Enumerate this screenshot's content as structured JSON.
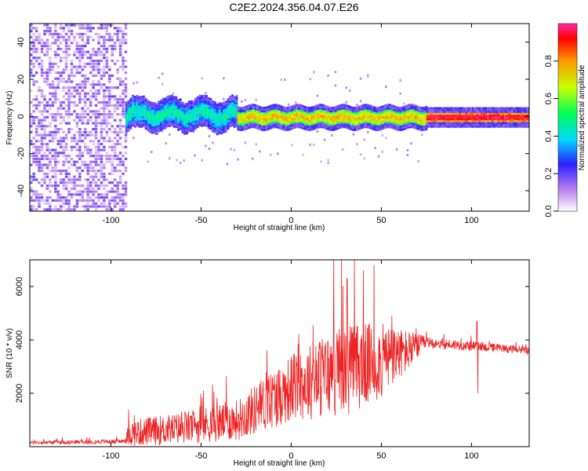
{
  "title": "C2E2.2024.356.04.07.E26",
  "colors": {
    "frame": "#000000",
    "snr_line": "#ee2222"
  },
  "chart_data": [
    {
      "type": "heatmap",
      "xlabel": "Height of straight line (km)",
      "ylabel": "Frequency (Hz)",
      "xlim": [
        -145,
        132
      ],
      "ylim": [
        -51,
        50
      ],
      "x_ticks": [
        -100,
        -50,
        0,
        50,
        100
      ],
      "y_ticks": [
        -40,
        -20,
        0,
        20,
        40
      ],
      "colorbar": {
        "label": "Normalized spectral amplitude",
        "range": [
          0.0,
          1.0
        ],
        "ticks": [
          "0.0",
          "0.2",
          "0.4",
          "0.6",
          "0.8"
        ],
        "colormap": "rainbow-white (white → violet → blue → cyan → green → yellow → red → pink)"
      },
      "regions": [
        {
          "x_range": [
            -145,
            -92
          ],
          "description_value": "broadband noise",
          "amplitude": 0.12,
          "freq_spread": [
            -51,
            50
          ]
        },
        {
          "x_range": [
            -92,
            -30
          ],
          "amplitude": 0.45,
          "band_center": 1.5,
          "band_halfwidth": 5
        },
        {
          "x_range": [
            -30,
            75
          ],
          "amplitude": 0.75,
          "band_center": 0,
          "band_halfwidth": 3
        },
        {
          "x_range": [
            75,
            132
          ],
          "amplitude": 0.95,
          "band_center": 0,
          "band_halfwidth": 2
        }
      ]
    },
    {
      "type": "line",
      "xlabel": "Height of straight line (km)",
      "ylabel": "SNR (10 * v/v)",
      "xlim": [
        -145,
        132
      ],
      "ylim": [
        0,
        7000
      ],
      "x_ticks": [
        -100,
        -50,
        0,
        50,
        100
      ],
      "y_ticks": [
        2000,
        4000,
        6000
      ],
      "envelope": [
        {
          "x": -145,
          "base": 150,
          "spread": 120
        },
        {
          "x": -92,
          "base": 200,
          "spread": 150
        },
        {
          "x": -90,
          "base": 500,
          "spread": 900
        },
        {
          "x": -60,
          "base": 700,
          "spread": 1100
        },
        {
          "x": -30,
          "base": 1000,
          "spread": 1400
        },
        {
          "x": -15,
          "base": 1600,
          "spread": 1900
        },
        {
          "x": 0,
          "base": 2200,
          "spread": 2300
        },
        {
          "x": 30,
          "base": 2900,
          "spread": 3200
        },
        {
          "x": 50,
          "base": 3200,
          "spread": 2600
        },
        {
          "x": 65,
          "base": 3600,
          "spread": 1400
        },
        {
          "x": 75,
          "base": 3900,
          "spread": 400
        },
        {
          "x": 132,
          "base": 3600,
          "spread": 250
        }
      ],
      "peaks": [
        {
          "x": 28,
          "y": 7000
        },
        {
          "x": 31,
          "y": 6300
        },
        {
          "x": 40,
          "y": 6600
        },
        {
          "x": 46,
          "y": 6800
        },
        {
          "x": 103,
          "y": 4700
        },
        {
          "x": 103.5,
          "y": 2000
        }
      ]
    }
  ]
}
